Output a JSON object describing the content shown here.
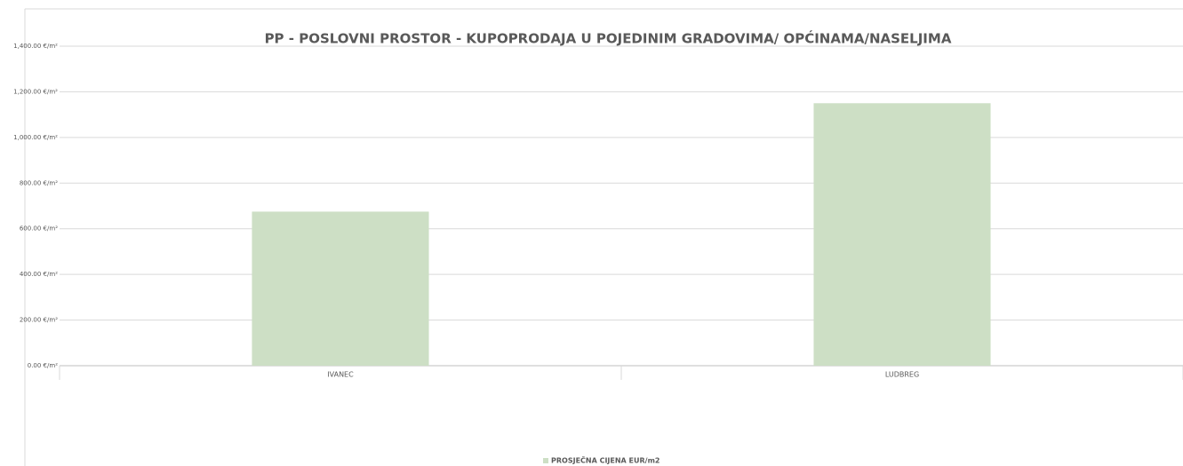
{
  "chart_data": {
    "type": "bar",
    "title": "PP - POSLOVNI PROSTOR - KUPOPRODAJA U POJEDINIM GRADOVIMA/ OPĆINAMA/NASELJIMA",
    "categories": [
      "IVANEC",
      "LUDBREG"
    ],
    "series": [
      {
        "name": "PROSJEČNA CIJENA EUR/m2",
        "color": "#cddfc5",
        "values": [
          675,
          1150
        ]
      }
    ],
    "ylim": [
      0,
      1400
    ],
    "yticks": [
      {
        "value": 0,
        "label": "0.00 €/m²"
      },
      {
        "value": 200,
        "label": "200.00 €/m²"
      },
      {
        "value": 400,
        "label": "400.00 €/m²"
      },
      {
        "value": 600,
        "label": "600.00 €/m²"
      },
      {
        "value": 800,
        "label": "800.00 €/m²"
      },
      {
        "value": 1000,
        "label": "1,000.00 €/m²"
      },
      {
        "value": 1200,
        "label": "1,200.00 €/m²"
      },
      {
        "value": 1400,
        "label": "1,400.00 €/m²"
      }
    ],
    "grid": true,
    "legend": "bottom"
  }
}
